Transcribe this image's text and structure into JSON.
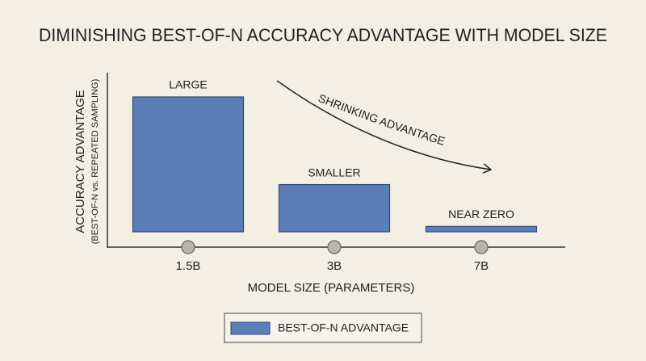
{
  "chart_data": {
    "type": "bar",
    "title": "DIMINISHING BEST-OF-N ACCURACY ADVANTAGE WITH MODEL SIZE",
    "y_label": "ACCURACY ADVANTAGE",
    "y_sublabel": "(BEST-OF-N vs. REPEATED SAMPLING)",
    "x_label": "MODEL SIZE (PARAMETERS)",
    "categories": [
      "1.5B",
      "3B",
      "7B"
    ],
    "series": [
      {
        "name": "BEST-OF-N ADVANTAGE",
        "color": "#5b7db8",
        "values": [
          100,
          35,
          4
        ]
      }
    ],
    "annotations": [
      "LARGE",
      "SMALLER",
      "NEAR ZERO"
    ],
    "trend_label": "SHRINKING ADVANTAGE",
    "ylim": [
      0,
      100
    ]
  }
}
